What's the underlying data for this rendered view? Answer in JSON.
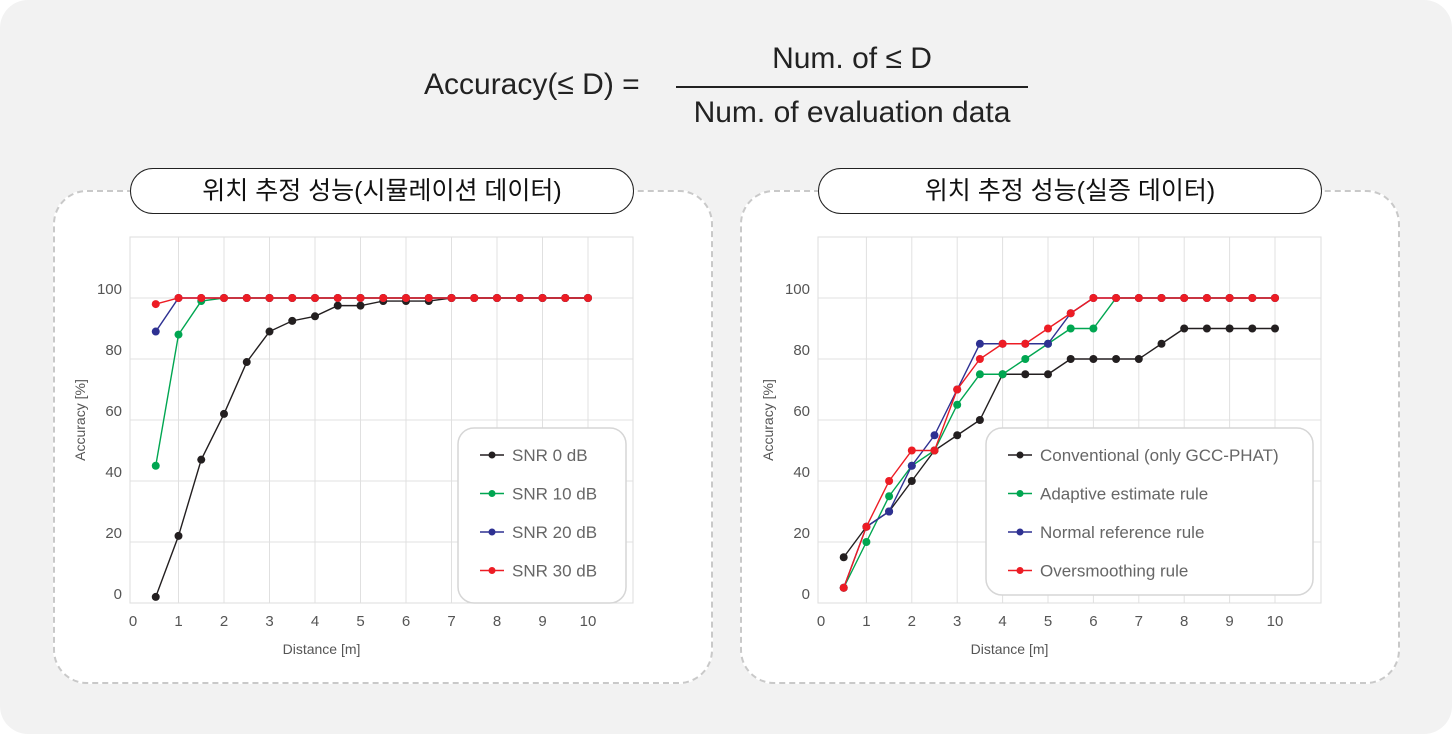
{
  "formula": {
    "lhs": "Accuracy(≤ D) =",
    "numerator": "Num. of ≤ D",
    "denominator": "Num. of evaluation data"
  },
  "chart_data": [
    {
      "type": "line",
      "title": "위치 추정 성능(시뮬레이션 데이터)",
      "xlabel": "Distance [m]",
      "ylabel": "Accuracy [%]",
      "xlim": [
        0,
        11
      ],
      "ylim": [
        0,
        120
      ],
      "xticks": [
        0,
        1,
        2,
        3,
        4,
        5,
        6,
        7,
        8,
        9,
        10
      ],
      "yticks": [
        0,
        20,
        40,
        60,
        80,
        100
      ],
      "grid": true,
      "legend": "bottom-right",
      "x": [
        0.5,
        1,
        1.5,
        2,
        2.5,
        3,
        3.5,
        4,
        4.5,
        5,
        5.5,
        6,
        6.5,
        7,
        7.5,
        8,
        8.5,
        9,
        9.5,
        10
      ],
      "series": [
        {
          "name": "SNR 0 dB",
          "color": "#231f20",
          "values": [
            2,
            22,
            47,
            62,
            79,
            89,
            92.5,
            94,
            97.5,
            97.5,
            99,
            99,
            99,
            100,
            100,
            100,
            100,
            100,
            100,
            100
          ]
        },
        {
          "name": "SNR 10 dB",
          "color": "#00a651",
          "values": [
            45,
            88,
            99,
            100,
            100,
            100,
            100,
            100,
            100,
            100,
            100,
            100,
            100,
            100,
            100,
            100,
            100,
            100,
            100,
            100
          ]
        },
        {
          "name": "SNR 20 dB",
          "color": "#2e3192",
          "values": [
            89,
            100,
            100,
            100,
            100,
            100,
            100,
            100,
            100,
            100,
            100,
            100,
            100,
            100,
            100,
            100,
            100,
            100,
            100,
            100
          ]
        },
        {
          "name": "SNR 30 dB",
          "color": "#ed1c24",
          "values": [
            98,
            100,
            100,
            100,
            100,
            100,
            100,
            100,
            100,
            100,
            100,
            100,
            100,
            100,
            100,
            100,
            100,
            100,
            100,
            100
          ]
        }
      ]
    },
    {
      "type": "line",
      "title": "위치 추정 성능(실증 데이터)",
      "xlabel": "Distance [m]",
      "ylabel": "Accuracy [%]",
      "xlim": [
        0,
        11
      ],
      "ylim": [
        0,
        120
      ],
      "xticks": [
        0,
        1,
        2,
        3,
        4,
        5,
        6,
        7,
        8,
        9,
        10
      ],
      "yticks": [
        0,
        20,
        40,
        60,
        80,
        100
      ],
      "grid": true,
      "legend": "bottom-right",
      "x": [
        0.5,
        1,
        1.5,
        2,
        2.5,
        3,
        3.5,
        4,
        4.5,
        5,
        5.5,
        6,
        6.5,
        7,
        7.5,
        8,
        8.5,
        9,
        9.5,
        10
      ],
      "series": [
        {
          "name": "Conventional (only GCC-PHAT)",
          "color": "#231f20",
          "values": [
            15,
            25,
            30,
            40,
            50,
            55,
            60,
            75,
            75,
            75,
            80,
            80,
            80,
            80,
            85,
            90,
            90,
            90,
            90,
            90
          ]
        },
        {
          "name": "Adaptive estimate rule",
          "color": "#00a651",
          "values": [
            5,
            20,
            35,
            45,
            50,
            65,
            75,
            75,
            80,
            85,
            90,
            90,
            100,
            100,
            100,
            100,
            100,
            100,
            100,
            100
          ]
        },
        {
          "name": "Normal reference rule",
          "color": "#2e3192",
          "values": [
            5,
            25,
            30,
            45,
            55,
            70,
            85,
            85,
            85,
            85,
            95,
            100,
            100,
            100,
            100,
            100,
            100,
            100,
            100,
            100
          ]
        },
        {
          "name": "Oversmoothing rule",
          "color": "#ed1c24",
          "values": [
            5,
            25,
            40,
            50,
            50,
            70,
            80,
            85,
            85,
            90,
            95,
            100,
            100,
            100,
            100,
            100,
            100,
            100,
            100,
            100
          ]
        }
      ]
    }
  ]
}
